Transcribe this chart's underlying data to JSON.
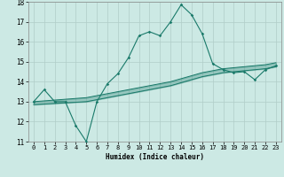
{
  "xlabel": "Humidex (Indice chaleur)",
  "xlim": [
    -0.5,
    23.5
  ],
  "ylim": [
    11,
    18
  ],
  "xticks": [
    0,
    1,
    2,
    3,
    4,
    5,
    6,
    7,
    8,
    9,
    10,
    11,
    12,
    13,
    14,
    15,
    16,
    17,
    18,
    19,
    20,
    21,
    22,
    23
  ],
  "yticks": [
    11,
    12,
    13,
    14,
    15,
    16,
    17,
    18
  ],
  "bg_color": "#cce9e4",
  "line_color": "#1a7a6a",
  "grid_color": "#b0cdc8",
  "main_x": [
    0,
    1,
    2,
    3,
    4,
    5,
    6,
    7,
    8,
    9,
    10,
    11,
    12,
    13,
    14,
    15,
    16,
    17,
    18,
    19,
    20,
    21,
    22,
    23
  ],
  "main_y": [
    13.0,
    13.6,
    13.0,
    13.0,
    11.8,
    11.0,
    13.0,
    13.9,
    14.4,
    15.2,
    16.3,
    16.5,
    16.3,
    17.0,
    17.85,
    17.35,
    16.4,
    14.9,
    14.6,
    14.45,
    14.5,
    14.1,
    14.6,
    14.8
  ],
  "upper_x": [
    0,
    5,
    6,
    7,
    8,
    9,
    10,
    11,
    12,
    13,
    14,
    15,
    16,
    17,
    18,
    19,
    20,
    21,
    22,
    23
  ],
  "upper_y": [
    13.0,
    13.2,
    13.3,
    13.4,
    13.5,
    13.6,
    13.7,
    13.8,
    13.9,
    14.0,
    14.15,
    14.3,
    14.45,
    14.55,
    14.65,
    14.7,
    14.75,
    14.8,
    14.85,
    14.95
  ],
  "lower_x": [
    0,
    5,
    6,
    7,
    8,
    9,
    10,
    11,
    12,
    13,
    14,
    15,
    16,
    17,
    18,
    19,
    20,
    21,
    22,
    23
  ],
  "lower_y": [
    12.85,
    13.0,
    13.1,
    13.2,
    13.3,
    13.4,
    13.5,
    13.6,
    13.7,
    13.8,
    13.95,
    14.1,
    14.25,
    14.35,
    14.45,
    14.5,
    14.55,
    14.6,
    14.65,
    14.75
  ]
}
